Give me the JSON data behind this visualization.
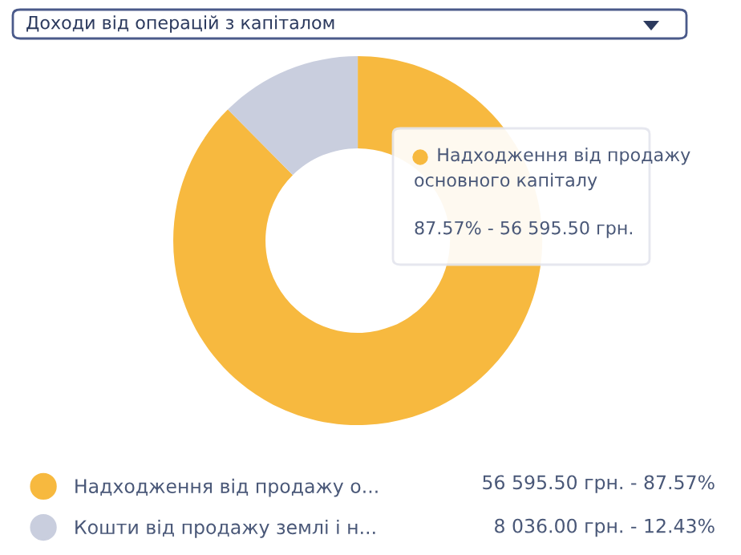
{
  "chart_data": {
    "type": "donut",
    "title": "Доходи від операцій з капіталом",
    "categories": [
      "Надходження від продажу о...",
      "Кошти від продажу землі і н..."
    ],
    "values": [
      56595.5,
      8036.0
    ],
    "colors": [
      "#f7b93f",
      "#c9cede"
    ],
    "value_labels": [
      "56 595.50 грн. - 87.57%",
      "8 036.00 грн. - 12.43%"
    ],
    "annotations": [
      "Надходження від продажу основного капіталу",
      "87.57% - 56 595.50 грн."
    ],
    "legend": "bottom"
  }
}
